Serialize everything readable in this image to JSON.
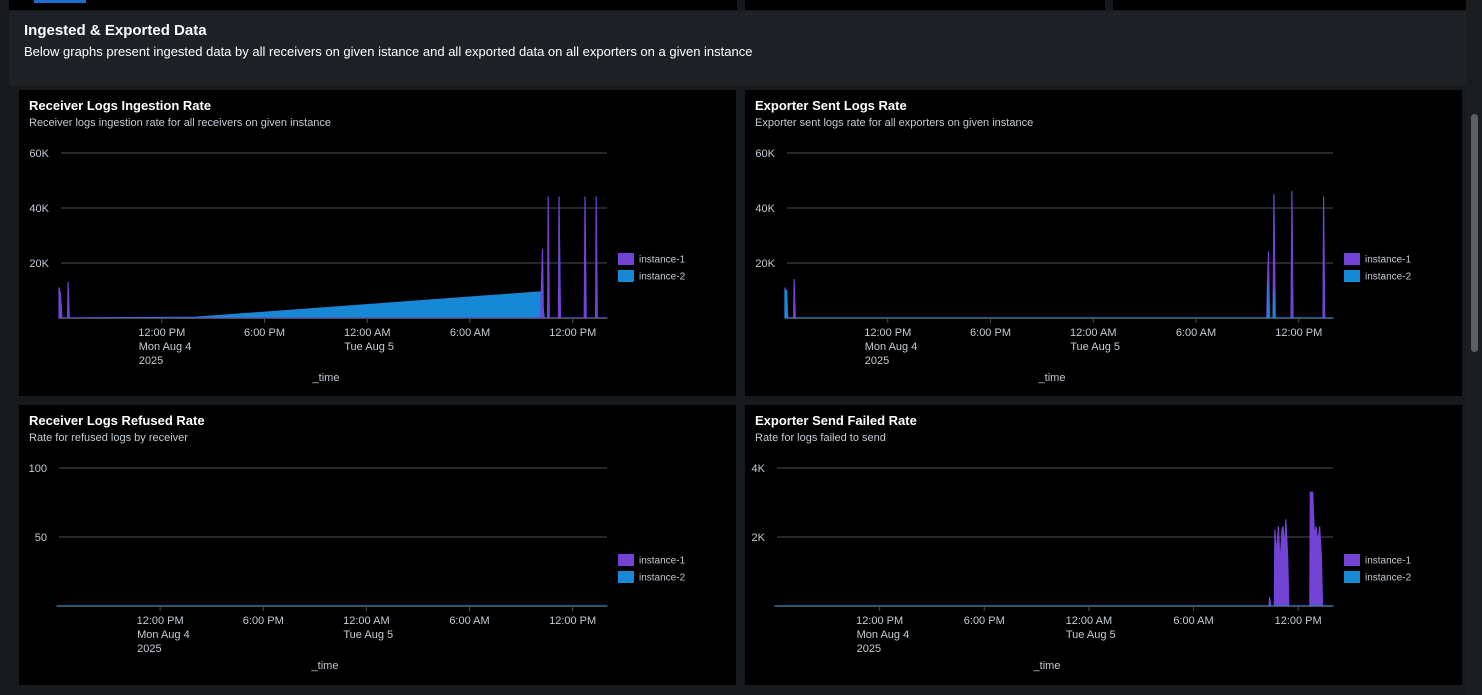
{
  "section": {
    "title": "Ingested & Exported Data",
    "description": "Below graphs present ingested data by all receivers on given istance and all exported data on all exporters on a given instance"
  },
  "colors": {
    "instance-1": "#7243d4",
    "instance-2": "#1688d6",
    "grid": "#4a4e52"
  },
  "chart_data": [
    {
      "id": "receiver-logs-ingestion-rate",
      "type": "area",
      "title": "Receiver Logs Ingestion Rate",
      "subtitle": "Receiver logs ingestion rate for all receivers on given instance",
      "xlabel": "_time",
      "ylabel": "",
      "xlim": [
        "2025-08-04T06:00",
        "2025-08-05T14:00"
      ],
      "ylim": [
        0,
        60000
      ],
      "y_ticks": [
        {
          "v": 20000,
          "label": "20K"
        },
        {
          "v": 40000,
          "label": "40K"
        },
        {
          "v": 60000,
          "label": "60K"
        }
      ],
      "x_ticks": [
        {
          "t": "2025-08-04T12:00",
          "lines": [
            "12:00 PM",
            "Mon Aug 4",
            "2025"
          ]
        },
        {
          "t": "2025-08-04T18:00",
          "lines": [
            "6:00 PM"
          ]
        },
        {
          "t": "2025-08-05T00:00",
          "lines": [
            "12:00 AM",
            "Tue Aug 5"
          ]
        },
        {
          "t": "2025-08-05T06:00",
          "lines": [
            "6:00 AM"
          ]
        },
        {
          "t": "2025-08-05T12:00",
          "lines": [
            "12:00 PM"
          ]
        }
      ],
      "legend": [
        "instance-1",
        "instance-2"
      ],
      "legend_position": "right",
      "series": [
        {
          "name": "instance-2",
          "color": "#1688d6",
          "points": [
            [
              "2025-08-04T06:00",
              0
            ],
            [
              "2025-08-04T14:00",
              300
            ],
            [
              "2025-08-05T10:10",
              9500
            ],
            [
              "2025-08-05T10:20",
              0
            ],
            [
              "2025-08-05T14:00",
              0
            ]
          ]
        },
        {
          "name": "instance-1",
          "color": "#7243d4",
          "points": [
            [
              "2025-08-04T06:00",
              11000
            ],
            [
              "2025-08-04T06:05",
              9000
            ],
            [
              "2025-08-04T06:10",
              0
            ],
            [
              "2025-08-04T06:30",
              0
            ],
            [
              "2025-08-04T06:32",
              13000
            ],
            [
              "2025-08-04T06:36",
              0
            ],
            [
              "2025-08-04T16:00",
              0
            ],
            [
              "2025-08-05T10:08",
              0
            ],
            [
              "2025-08-05T10:10",
              11000
            ],
            [
              "2025-08-05T10:14",
              25000
            ],
            [
              "2025-08-05T10:17",
              0
            ],
            [
              "2025-08-05T10:32",
              0
            ],
            [
              "2025-08-05T10:34",
              44000
            ],
            [
              "2025-08-05T10:38",
              0
            ],
            [
              "2025-08-05T11:10",
              0
            ],
            [
              "2025-08-05T11:12",
              44000
            ],
            [
              "2025-08-05T11:17",
              0
            ],
            [
              "2025-08-05T12:40",
              0
            ],
            [
              "2025-08-05T12:43",
              44000
            ],
            [
              "2025-08-05T12:47",
              0
            ],
            [
              "2025-08-05T13:20",
              0
            ],
            [
              "2025-08-05T13:22",
              44000
            ],
            [
              "2025-08-05T13:26",
              0
            ],
            [
              "2025-08-05T14:00",
              0
            ]
          ]
        }
      ]
    },
    {
      "id": "exporter-sent-logs-rate",
      "type": "area",
      "title": "Exporter Sent Logs Rate",
      "subtitle": "Exporter sent logs rate for all exporters on given instance",
      "xlabel": "_time",
      "ylabel": "",
      "xlim": [
        "2025-08-04T06:00",
        "2025-08-05T14:00"
      ],
      "ylim": [
        0,
        60000
      ],
      "y_ticks": [
        {
          "v": 20000,
          "label": "20K"
        },
        {
          "v": 40000,
          "label": "40K"
        },
        {
          "v": 60000,
          "label": "60K"
        }
      ],
      "x_ticks": [
        {
          "t": "2025-08-04T12:00",
          "lines": [
            "12:00 PM",
            "Mon Aug 4",
            "2025"
          ]
        },
        {
          "t": "2025-08-04T18:00",
          "lines": [
            "6:00 PM"
          ]
        },
        {
          "t": "2025-08-05T00:00",
          "lines": [
            "12:00 AM",
            "Tue Aug 5"
          ]
        },
        {
          "t": "2025-08-05T06:00",
          "lines": [
            "6:00 AM"
          ]
        },
        {
          "t": "2025-08-05T12:00",
          "lines": [
            "12:00 PM"
          ]
        }
      ],
      "legend": [
        "instance-1",
        "instance-2"
      ],
      "legend_position": "right",
      "series": [
        {
          "name": "instance-1",
          "color": "#7243d4",
          "points": [
            [
              "2025-08-04T06:00",
              11000
            ],
            [
              "2025-08-04T06:05",
              9000
            ],
            [
              "2025-08-04T06:10",
              0
            ],
            [
              "2025-08-04T06:30",
              0
            ],
            [
              "2025-08-04T06:32",
              14000
            ],
            [
              "2025-08-04T06:36",
              0
            ],
            [
              "2025-08-04T16:00",
              0
            ],
            [
              "2025-08-05T10:08",
              0
            ],
            [
              "2025-08-05T10:10",
              12000
            ],
            [
              "2025-08-05T10:14",
              24000
            ],
            [
              "2025-08-05T10:17",
              0
            ],
            [
              "2025-08-05T10:30",
              0
            ],
            [
              "2025-08-05T10:33",
              45000
            ],
            [
              "2025-08-05T10:38",
              0
            ],
            [
              "2025-08-05T11:33",
              0
            ],
            [
              "2025-08-05T11:36",
              46000
            ],
            [
              "2025-08-05T11:40",
              0
            ],
            [
              "2025-08-05T13:25",
              0
            ],
            [
              "2025-08-05T13:27",
              44000
            ],
            [
              "2025-08-05T13:31",
              0
            ],
            [
              "2025-08-05T14:00",
              0
            ]
          ]
        },
        {
          "name": "instance-2",
          "color": "#1688d6",
          "points": [
            [
              "2025-08-04T06:00",
              10000
            ],
            [
              "2025-08-04T06:06",
              10000
            ],
            [
              "2025-08-04T06:08",
              0
            ],
            [
              "2025-08-04T14:00",
              0
            ],
            [
              "2025-08-05T10:10",
              0
            ],
            [
              "2025-08-05T10:12",
              12000
            ],
            [
              "2025-08-05T10:16",
              0
            ],
            [
              "2025-08-05T10:30",
              0
            ],
            [
              "2025-08-05T10:33",
              10000
            ],
            [
              "2025-08-05T10:36",
              0
            ],
            [
              "2025-08-05T14:00",
              0
            ]
          ]
        }
      ]
    },
    {
      "id": "receiver-logs-refused-rate",
      "type": "area",
      "title": "Receiver Logs Refused Rate",
      "subtitle": "Rate for refused logs by receiver",
      "xlabel": "_time",
      "ylabel": "",
      "xlim": [
        "2025-08-04T06:00",
        "2025-08-05T14:00"
      ],
      "ylim": [
        0,
        100
      ],
      "y_ticks": [
        {
          "v": 50,
          "label": "50"
        },
        {
          "v": 100,
          "label": "100"
        }
      ],
      "x_ticks": [
        {
          "t": "2025-08-04T12:00",
          "lines": [
            "12:00 PM",
            "Mon Aug 4",
            "2025"
          ]
        },
        {
          "t": "2025-08-04T18:00",
          "lines": [
            "6:00 PM"
          ]
        },
        {
          "t": "2025-08-05T00:00",
          "lines": [
            "12:00 AM",
            "Tue Aug 5"
          ]
        },
        {
          "t": "2025-08-05T06:00",
          "lines": [
            "6:00 AM"
          ]
        },
        {
          "t": "2025-08-05T12:00",
          "lines": [
            "12:00 PM"
          ]
        }
      ],
      "legend": [
        "instance-1",
        "instance-2"
      ],
      "legend_position": "right",
      "series": [
        {
          "name": "instance-1",
          "color": "#7243d4",
          "points": [
            [
              "2025-08-04T06:00",
              0
            ],
            [
              "2025-08-04T14:30",
              0
            ],
            [
              "2025-08-05T10:00",
              0
            ],
            [
              "2025-08-05T14:00",
              0
            ]
          ]
        },
        {
          "name": "instance-2",
          "color": "#1688d6",
          "points": [
            [
              "2025-08-04T06:00",
              0
            ],
            [
              "2025-08-05T14:00",
              0
            ]
          ]
        }
      ]
    },
    {
      "id": "exporter-send-failed-rate",
      "type": "area",
      "title": "Exporter Send Failed Rate",
      "subtitle": "Rate for logs failed to send",
      "xlabel": "_time",
      "ylabel": "",
      "xlim": [
        "2025-08-04T06:00",
        "2025-08-05T14:00"
      ],
      "ylim": [
        0,
        4000
      ],
      "y_ticks": [
        {
          "v": 2000,
          "label": "2K"
        },
        {
          "v": 4000,
          "label": "4K"
        }
      ],
      "x_ticks": [
        {
          "t": "2025-08-04T12:00",
          "lines": [
            "12:00 PM",
            "Mon Aug 4",
            "2025"
          ]
        },
        {
          "t": "2025-08-04T18:00",
          "lines": [
            "6:00 PM"
          ]
        },
        {
          "t": "2025-08-05T00:00",
          "lines": [
            "12:00 AM",
            "Tue Aug 5"
          ]
        },
        {
          "t": "2025-08-05T06:00",
          "lines": [
            "6:00 AM"
          ]
        },
        {
          "t": "2025-08-05T12:00",
          "lines": [
            "12:00 PM"
          ]
        }
      ],
      "legend": [
        "instance-1",
        "instance-2"
      ],
      "legend_position": "right",
      "series": [
        {
          "name": "instance-1",
          "color": "#7243d4",
          "points": [
            [
              "2025-08-04T06:00",
              0
            ],
            [
              "2025-08-05T10:20",
              0
            ],
            [
              "2025-08-05T10:22",
              250
            ],
            [
              "2025-08-05T10:26",
              0
            ],
            [
              "2025-08-05T10:38",
              0
            ],
            [
              "2025-08-05T10:40",
              2200
            ],
            [
              "2025-08-05T10:46",
              1500
            ],
            [
              "2025-08-05T10:52",
              2300
            ],
            [
              "2025-08-05T10:58",
              1200
            ],
            [
              "2025-08-05T11:04",
              2200
            ],
            [
              "2025-08-05T11:08",
              2300
            ],
            [
              "2025-08-05T11:14",
              1700
            ],
            [
              "2025-08-05T11:18",
              2500
            ],
            [
              "2025-08-05T11:24",
              1400
            ],
            [
              "2025-08-05T11:28",
              0
            ],
            [
              "2025-08-05T12:40",
              0
            ],
            [
              "2025-08-05T12:42",
              3300
            ],
            [
              "2025-08-05T12:50",
              3300
            ],
            [
              "2025-08-05T12:56",
              2000
            ],
            [
              "2025-08-05T13:02",
              2300
            ],
            [
              "2025-08-05T13:08",
              1800
            ],
            [
              "2025-08-05T13:14",
              2300
            ],
            [
              "2025-08-05T13:20",
              1400
            ],
            [
              "2025-08-05T13:24",
              0
            ],
            [
              "2025-08-05T14:00",
              0
            ]
          ]
        },
        {
          "name": "instance-2",
          "color": "#1688d6",
          "points": [
            [
              "2025-08-04T06:00",
              0
            ],
            [
              "2025-08-05T14:00",
              0
            ]
          ]
        }
      ]
    }
  ]
}
